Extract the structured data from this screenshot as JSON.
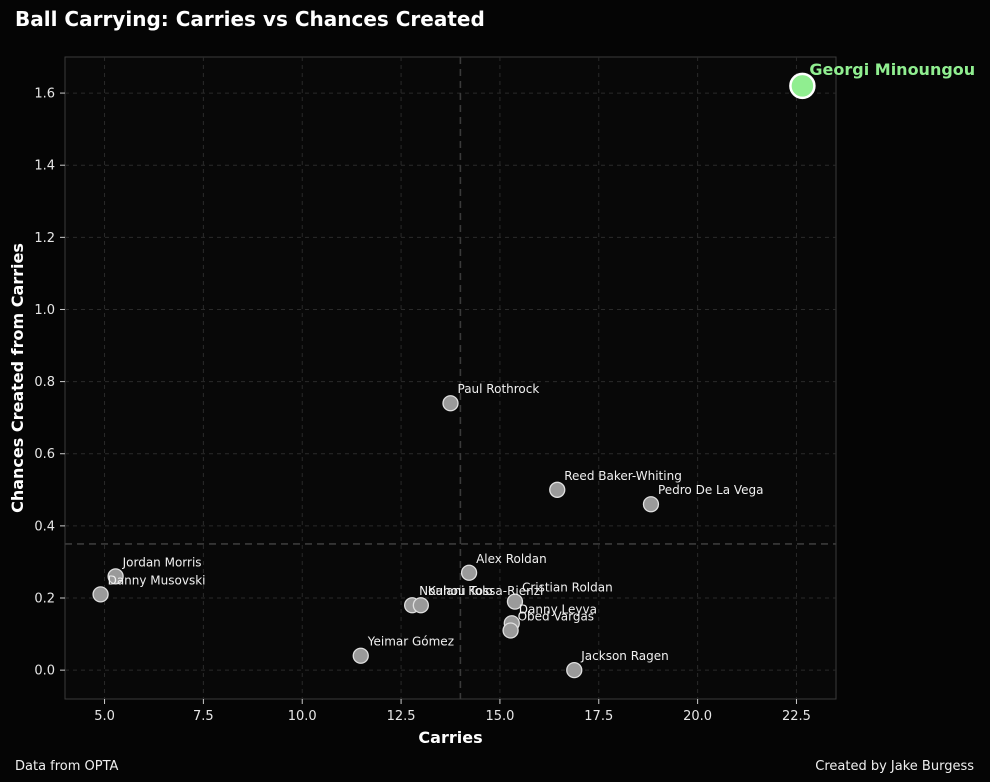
{
  "header": {
    "title": "Ball Carrying: Carries vs Chances Created"
  },
  "footer": {
    "source": "Data from OPTA",
    "credit": "Created by Jake Burgess"
  },
  "colors": {
    "background": "#050505",
    "plot_background": "#080808",
    "point_fill": "#9a9a9a",
    "point_stroke": "#e0e0e0",
    "highlight_fill": "#90ee90",
    "highlight_stroke": "#ffffff",
    "highlight_text": "#90ee90",
    "reference_line": "#3a3a3a",
    "grid": "#2a2a2a"
  },
  "chart_data": {
    "type": "scatter",
    "title": "Ball Carrying: Carries vs Chances Created",
    "xlabel": "Carries",
    "ylabel": "Chances Created from Carries",
    "xlim": [
      4.0,
      23.5
    ],
    "ylim": [
      -0.08,
      1.7
    ],
    "xticks": [
      5.0,
      7.5,
      10.0,
      12.5,
      15.0,
      17.5,
      20.0,
      22.5
    ],
    "xtick_labels": [
      "5.0",
      "7.5",
      "10.0",
      "12.5",
      "15.0",
      "17.5",
      "20.0",
      "22.5"
    ],
    "yticks": [
      0.0,
      0.2,
      0.4,
      0.6,
      0.8,
      1.0,
      1.2,
      1.4,
      1.6
    ],
    "ytick_labels": [
      "0.0",
      "0.2",
      "0.4",
      "0.6",
      "0.8",
      "1.0",
      "1.2",
      "1.4",
      "1.6"
    ],
    "grid": true,
    "reference_lines": {
      "x": 14.0,
      "y": 0.35
    },
    "points": [
      {
        "name": "Georgi Minoungou",
        "x": 22.65,
        "y": 1.62,
        "highlight": true
      },
      {
        "name": "Paul Rothrock",
        "x": 13.75,
        "y": 0.74
      },
      {
        "name": "Reed Baker-Whiting",
        "x": 16.45,
        "y": 0.5
      },
      {
        "name": "Pedro De La Vega",
        "x": 18.82,
        "y": 0.46
      },
      {
        "name": "Alex Roldan",
        "x": 14.22,
        "y": 0.27
      },
      {
        "name": "Jordan Morris",
        "x": 5.28,
        "y": 0.26
      },
      {
        "name": "Danny Musovski",
        "x": 4.9,
        "y": 0.21
      },
      {
        "name": "Cristian Roldan",
        "x": 15.38,
        "y": 0.19
      },
      {
        "name": "Nouhou Tolo",
        "x": 12.78,
        "y": 0.18
      },
      {
        "name": "Kalani Kossa-Rienzi",
        "x": 13.0,
        "y": 0.18
      },
      {
        "name": "Danny Leyva",
        "x": 15.3,
        "y": 0.13
      },
      {
        "name": "Obed Vargas",
        "x": 15.27,
        "y": 0.11
      },
      {
        "name": "Yeimar Gómez",
        "x": 11.48,
        "y": 0.04
      },
      {
        "name": "Jackson Ragen",
        "x": 16.88,
        "y": 0.0
      }
    ]
  }
}
